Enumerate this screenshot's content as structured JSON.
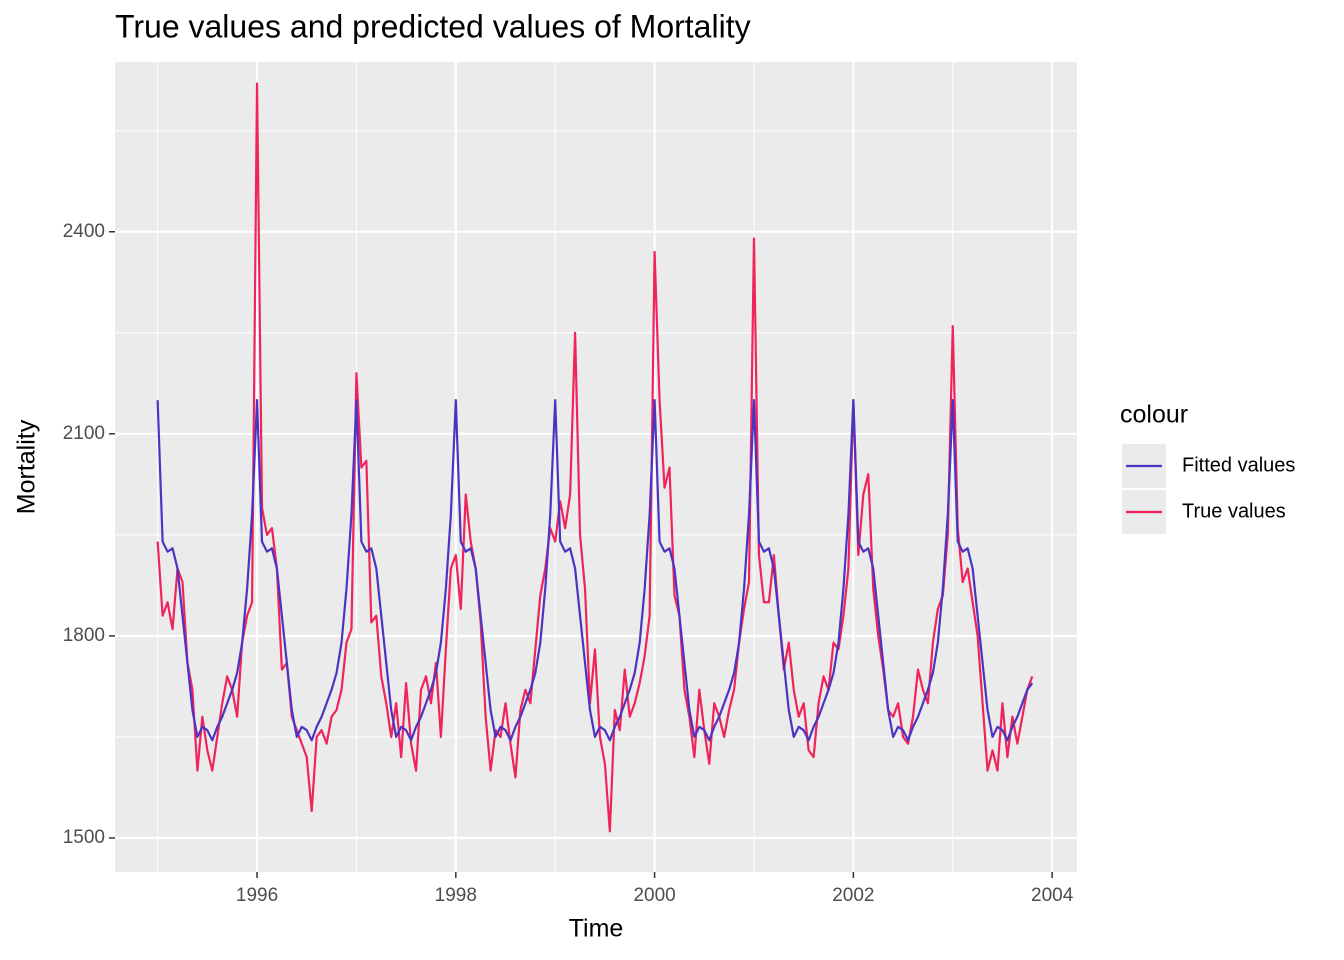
{
  "chart_data": {
    "type": "line",
    "title": "True values and predicted values of Mortality",
    "x_label": "Time",
    "y_label": "Mortality",
    "xlim": [
      1994.571,
      2004.25
    ],
    "ylim": [
      1449.5,
      2652
    ],
    "xticks": [
      1996,
      1998,
      2000,
      2002,
      2004
    ],
    "yticks": [
      1500,
      1800,
      2100,
      2400
    ],
    "grid": true,
    "legend_title": "colour",
    "legend": "right",
    "x": [
      1995,
      1995.05,
      1995.1,
      1995.15,
      1995.2,
      1995.25,
      1995.3,
      1995.35,
      1995.4,
      1995.45,
      1995.5,
      1995.55,
      1995.6,
      1995.65,
      1995.7,
      1995.75,
      1995.8,
      1995.85,
      1995.9,
      1995.95,
      1996,
      1996.05,
      1996.1,
      1996.15,
      1996.2,
      1996.25,
      1996.3,
      1996.35,
      1996.4,
      1996.45,
      1996.5,
      1996.55,
      1996.6,
      1996.65,
      1996.7,
      1996.75,
      1996.8,
      1996.85,
      1996.9,
      1996.95,
      1997,
      1997.05,
      1997.1,
      1997.15,
      1997.2,
      1997.25,
      1997.3,
      1997.35,
      1997.4,
      1997.45,
      1997.5,
      1997.55,
      1997.6,
      1997.65,
      1997.7,
      1997.75,
      1997.8,
      1997.85,
      1997.9,
      1997.95,
      1998,
      1998.05,
      1998.1,
      1998.15,
      1998.2,
      1998.25,
      1998.3,
      1998.35,
      1998.4,
      1998.45,
      1998.5,
      1998.55,
      1998.6,
      1998.65,
      1998.7,
      1998.75,
      1998.8,
      1998.85,
      1998.9,
      1998.95,
      1999,
      1999.05,
      1999.1,
      1999.15,
      1999.2,
      1999.25,
      1999.3,
      1999.35,
      1999.4,
      1999.45,
      1999.5,
      1999.55,
      1999.6,
      1999.65,
      1999.7,
      1999.75,
      1999.8,
      1999.85,
      1999.9,
      1999.95,
      2000,
      2000.05,
      2000.1,
      2000.15,
      2000.2,
      2000.25,
      2000.3,
      2000.35,
      2000.4,
      2000.45,
      2000.5,
      2000.55,
      2000.6,
      2000.65,
      2000.7,
      2000.75,
      2000.8,
      2000.85,
      2000.9,
      2000.95,
      2001,
      2001.05,
      2001.1,
      2001.15,
      2001.2,
      2001.25,
      2001.3,
      2001.35,
      2001.4,
      2001.45,
      2001.5,
      2001.55,
      2001.6,
      2001.65,
      2001.7,
      2001.75,
      2001.8,
      2001.85,
      2001.9,
      2001.95,
      2002,
      2002.05,
      2002.1,
      2002.15,
      2002.2,
      2002.25,
      2002.3,
      2002.35,
      2002.4,
      2002.45,
      2002.5,
      2002.55,
      2002.6,
      2002.65,
      2002.7,
      2002.75,
      2002.8,
      2002.85,
      2002.9,
      2002.95,
      2003,
      2003.05,
      2003.1,
      2003.15,
      2003.2,
      2003.25,
      2003.3,
      2003.35,
      2003.4,
      2003.45,
      2003.5,
      2003.55,
      2003.6,
      2003.65,
      2003.7,
      2003.75,
      2003.8
    ],
    "series": [
      {
        "name": "Fitted values",
        "color": "#4b34c4",
        "values": [
          2150,
          1940,
          1925,
          1930,
          1900,
          1830,
          1760,
          1690,
          1650,
          1665,
          1660,
          1645,
          1665,
          1680,
          1700,
          1720,
          1745,
          1790,
          1870,
          1980,
          2150,
          1940,
          1925,
          1930,
          1900,
          1830,
          1760,
          1690,
          1650,
          1665,
          1660,
          1645,
          1665,
          1680,
          1700,
          1720,
          1745,
          1790,
          1870,
          1980,
          2150,
          1940,
          1925,
          1930,
          1900,
          1830,
          1760,
          1690,
          1650,
          1665,
          1660,
          1645,
          1665,
          1680,
          1700,
          1720,
          1745,
          1790,
          1870,
          1980,
          2150,
          1940,
          1925,
          1930,
          1900,
          1830,
          1760,
          1690,
          1650,
          1665,
          1660,
          1645,
          1665,
          1680,
          1700,
          1720,
          1745,
          1790,
          1870,
          1980,
          2150,
          1940,
          1925,
          1930,
          1900,
          1830,
          1760,
          1690,
          1650,
          1665,
          1660,
          1645,
          1665,
          1680,
          1700,
          1720,
          1745,
          1790,
          1870,
          1980,
          2150,
          1940,
          1925,
          1930,
          1900,
          1830,
          1760,
          1690,
          1650,
          1665,
          1660,
          1645,
          1665,
          1680,
          1700,
          1720,
          1745,
          1790,
          1870,
          1980,
          2150,
          1940,
          1925,
          1930,
          1900,
          1830,
          1760,
          1690,
          1650,
          1665,
          1660,
          1645,
          1665,
          1680,
          1700,
          1720,
          1745,
          1790,
          1870,
          1980,
          2150,
          1940,
          1925,
          1930,
          1900,
          1830,
          1760,
          1690,
          1650,
          1665,
          1660,
          1645,
          1665,
          1680,
          1700,
          1720,
          1745,
          1790,
          1870,
          1980,
          2150,
          1940,
          1925,
          1930,
          1900,
          1830,
          1760,
          1690,
          1650,
          1665,
          1660,
          1645,
          1665,
          1680,
          1700,
          1720,
          1730
        ]
      },
      {
        "name": "True values",
        "color": "#f0245a",
        "values": [
          1940,
          1830,
          1850,
          1810,
          1900,
          1880,
          1760,
          1720,
          1600,
          1680,
          1630,
          1600,
          1650,
          1700,
          1740,
          1720,
          1680,
          1790,
          1830,
          1850,
          2620,
          1990,
          1950,
          1960,
          1900,
          1750,
          1760,
          1680,
          1660,
          1640,
          1620,
          1540,
          1650,
          1660,
          1640,
          1680,
          1690,
          1720,
          1790,
          1810,
          2190,
          2050,
          2060,
          1820,
          1830,
          1740,
          1700,
          1650,
          1700,
          1620,
          1730,
          1640,
          1600,
          1720,
          1740,
          1700,
          1760,
          1650,
          1780,
          1900,
          1920,
          1840,
          2010,
          1940,
          1900,
          1820,
          1680,
          1600,
          1660,
          1650,
          1700,
          1640,
          1590,
          1690,
          1720,
          1700,
          1780,
          1860,
          1900,
          1960,
          1940,
          2000,
          1960,
          2010,
          2250,
          1950,
          1870,
          1700,
          1780,
          1650,
          1610,
          1510,
          1690,
          1660,
          1750,
          1680,
          1700,
          1730,
          1770,
          1830,
          2370,
          2150,
          2020,
          2050,
          1860,
          1830,
          1720,
          1680,
          1620,
          1720,
          1660,
          1610,
          1700,
          1680,
          1650,
          1690,
          1720,
          1790,
          1840,
          1880,
          2390,
          1920,
          1850,
          1850,
          1920,
          1830,
          1750,
          1790,
          1720,
          1680,
          1700,
          1630,
          1620,
          1700,
          1740,
          1720,
          1790,
          1780,
          1830,
          1900,
          2150,
          1920,
          2010,
          2040,
          1870,
          1800,
          1750,
          1690,
          1680,
          1700,
          1650,
          1640,
          1680,
          1750,
          1720,
          1700,
          1790,
          1840,
          1860,
          1950,
          2260,
          1960,
          1880,
          1900,
          1850,
          1800,
          1700,
          1600,
          1630,
          1600,
          1700,
          1620,
          1680,
          1640,
          1680,
          1720,
          1740
        ]
      }
    ]
  }
}
